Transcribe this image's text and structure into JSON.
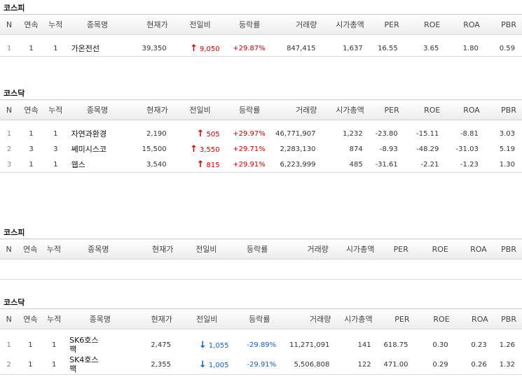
{
  "headers": [
    "N",
    "연속",
    "누적",
    "종목명",
    "현재가",
    "전일비",
    "등락률",
    "거래량",
    "시가총액",
    "PER",
    "ROE",
    "ROA",
    "PBR"
  ],
  "colors": {
    "up": "#cc0000",
    "down": "#1a5fb4"
  },
  "sections": [
    {
      "title": "코스피",
      "rows": [
        {
          "n": "1",
          "streak": "1",
          "cum": "1",
          "name": "가온전선",
          "price": "39,350",
          "dir": "up",
          "change": "9,050",
          "rate": "+29.87%",
          "volume": "847,415",
          "mcap": "1,637",
          "per": "16.55",
          "roe": "3.65",
          "roa": "1.80",
          "pbr": "0.59"
        }
      ]
    },
    {
      "title": "코스닥",
      "rows": [
        {
          "n": "1",
          "streak": "1",
          "cum": "1",
          "name": "자연과환경",
          "price": "2,190",
          "dir": "up",
          "change": "505",
          "rate": "+29.97%",
          "volume": "46,771,907",
          "mcap": "1,232",
          "per": "-23.80",
          "roe": "-15.11",
          "roa": "-8.81",
          "pbr": "3.03"
        },
        {
          "n": "2",
          "streak": "3",
          "cum": "3",
          "name": "쎄미시스코",
          "price": "15,500",
          "dir": "up",
          "change": "3,550",
          "rate": "+29.71%",
          "volume": "2,283,130",
          "mcap": "874",
          "per": "-8.93",
          "roe": "-48.29",
          "roa": "-31.03",
          "pbr": "5.19"
        },
        {
          "n": "3",
          "streak": "1",
          "cum": "1",
          "name": "웹스",
          "price": "3,540",
          "dir": "up",
          "change": "815",
          "rate": "+29.91%",
          "volume": "6,223,999",
          "mcap": "485",
          "per": "-31.61",
          "roe": "-2.21",
          "roa": "-1.23",
          "pbr": "1.30"
        }
      ]
    },
    {
      "title": "코스피",
      "rows": []
    },
    {
      "title": "코스닥",
      "rows": [
        {
          "n": "1",
          "streak": "1",
          "cum": "1",
          "name": "SK6호스팩",
          "price": "2,475",
          "dir": "down",
          "change": "1,055",
          "rate": "-29.89%",
          "volume": "11,271,091",
          "mcap": "141",
          "per": "618.75",
          "roe": "0.30",
          "roa": "0.23",
          "pbr": "1.26"
        },
        {
          "n": "2",
          "streak": "1",
          "cum": "1",
          "name": "SK4호스팩",
          "price": "2,355",
          "dir": "down",
          "change": "1,005",
          "rate": "-29.91%",
          "volume": "5,506,808",
          "mcap": "122",
          "per": "471.00",
          "roe": "0.29",
          "roa": "0.26",
          "pbr": "1.32"
        }
      ]
    }
  ]
}
